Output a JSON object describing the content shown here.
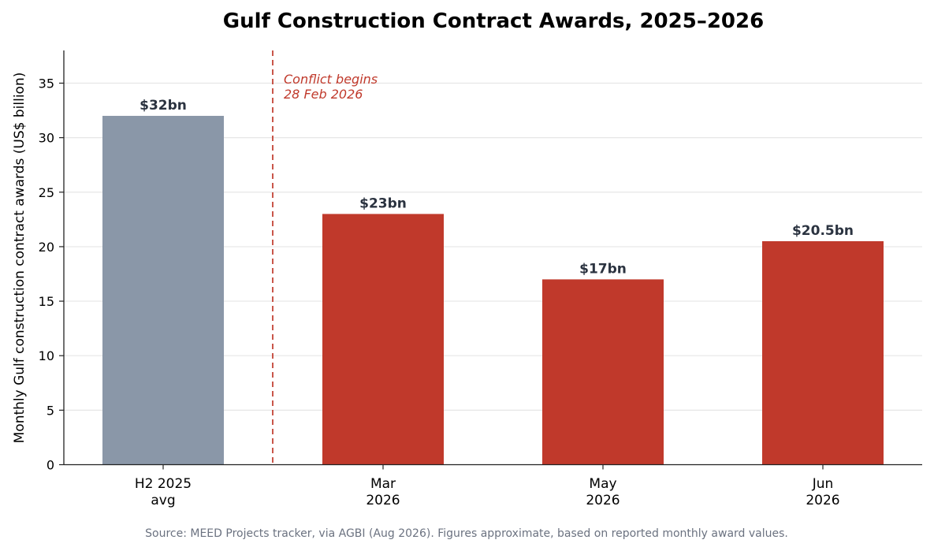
{
  "chart_data": {
    "type": "bar",
    "title": "Gulf Construction Contract Awards, 2025–2026",
    "ylabel": "Monthly Gulf construction contract awards (US$ billion)",
    "xlabel": "",
    "ylim": [
      0,
      38
    ],
    "yticks": [
      0,
      5,
      10,
      15,
      20,
      25,
      30,
      35
    ],
    "grid": true,
    "categories": [
      [
        "H2 2025",
        "avg"
      ],
      [
        "Mar",
        "2026"
      ],
      [
        "May",
        "2026"
      ],
      [
        "Jun",
        "2026"
      ]
    ],
    "values": [
      32,
      23,
      17,
      20.5
    ],
    "data_labels": [
      "$32bn",
      "$23bn",
      "$17bn",
      "$20.5bn"
    ],
    "colors": [
      "#8a97a8",
      "#c0392b",
      "#c0392b",
      "#c0392b"
    ],
    "annotation": {
      "lines": [
        "Conflict begins",
        "28 Feb 2026"
      ],
      "position_between_categories": [
        0,
        1
      ],
      "color": "#c0392b",
      "line_style": "dashed"
    },
    "source": "Source: MEED Projects tracker, via AGBI (Aug 2026). Figures approximate, based on reported monthly award values."
  }
}
